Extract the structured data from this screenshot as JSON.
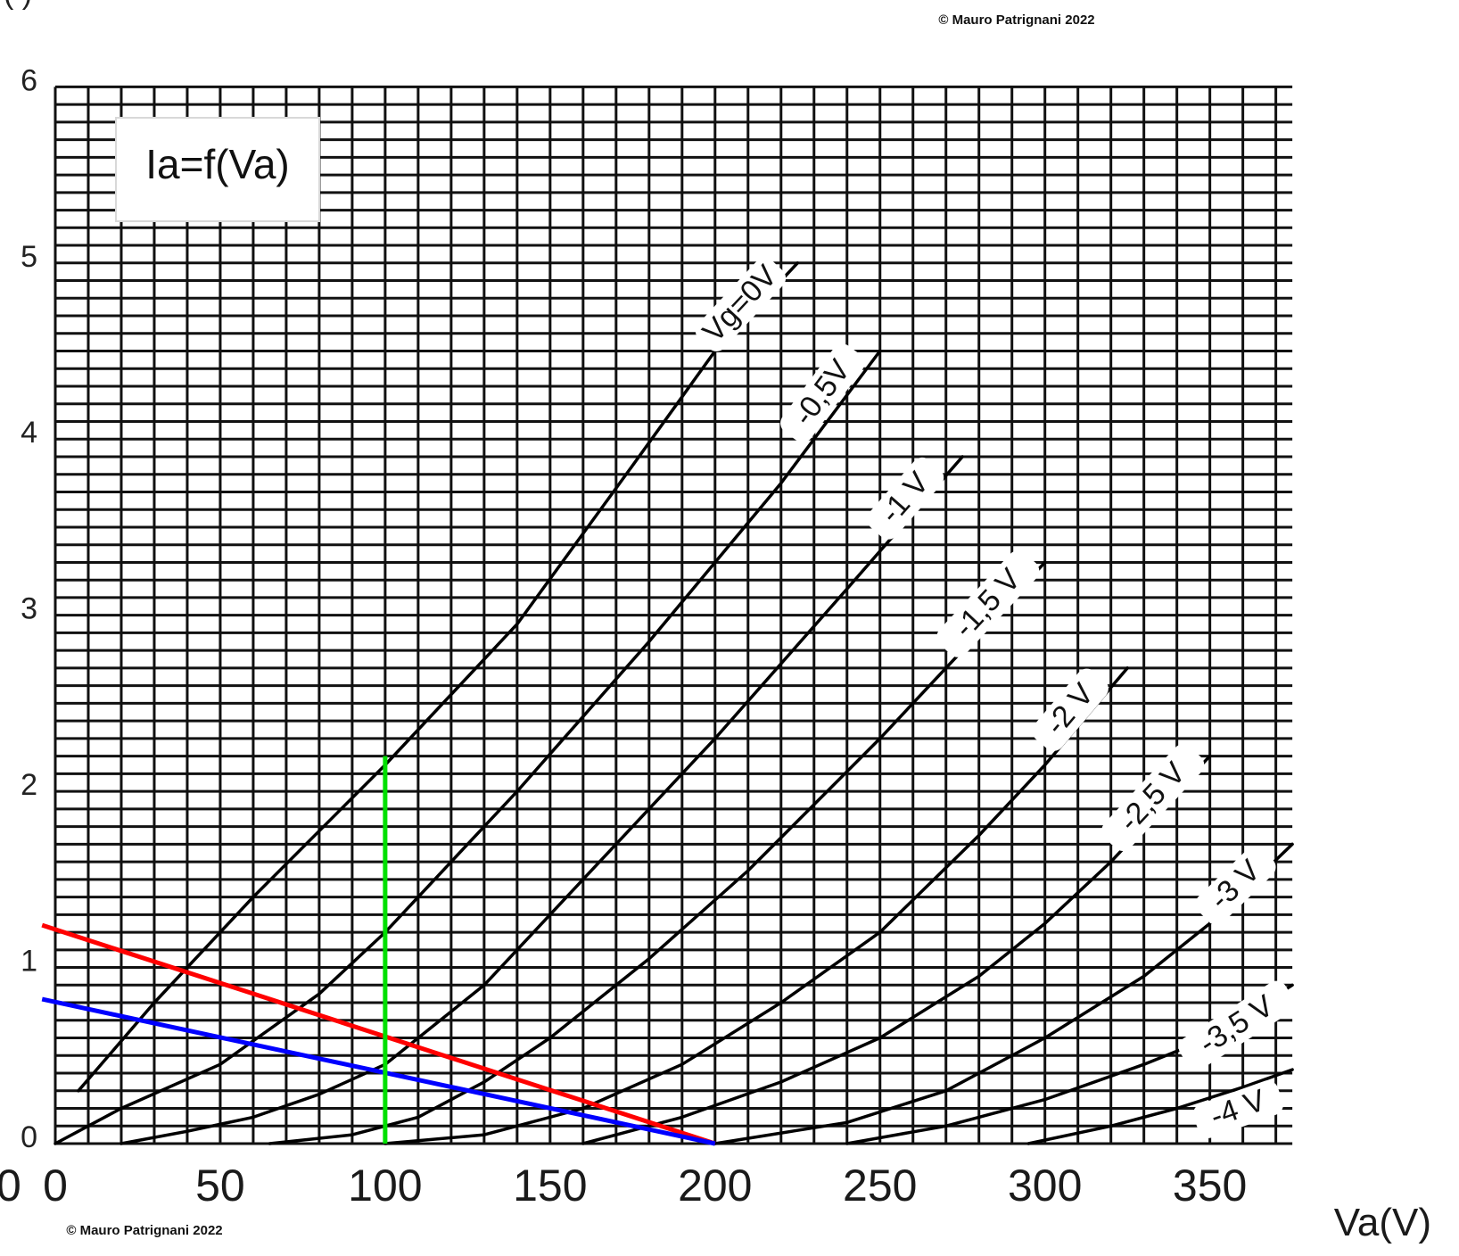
{
  "chart_data": {
    "type": "line",
    "title": "Ia=f(Va)",
    "xlabel": "Va(V)",
    "ylabel": "",
    "xlim": [
      0,
      375
    ],
    "ylim": [
      0,
      6
    ],
    "x_ticks": [
      "0",
      "50",
      "100",
      "150",
      "200",
      "250",
      "300",
      "350"
    ],
    "y_ticks": [
      "0",
      "1",
      "2",
      "3",
      "4",
      "5",
      "6"
    ],
    "grid": true,
    "series": [
      {
        "name": "Vg=0V",
        "x": [
          7,
          30,
          60,
          100,
          140,
          175,
          200,
          225
        ],
        "y": [
          0.3,
          0.8,
          1.4,
          2.15,
          2.95,
          3.85,
          4.5,
          5.0
        ]
      },
      {
        "name": "-0,5V",
        "x": [
          0,
          20,
          50,
          80,
          100,
          140,
          180,
          220,
          250
        ],
        "y": [
          0.0,
          0.2,
          0.45,
          0.85,
          1.2,
          2.0,
          2.85,
          3.75,
          4.5
        ]
      },
      {
        "name": "-1 V",
        "x": [
          20,
          40,
          60,
          80,
          100,
          130,
          160,
          200,
          240,
          275
        ],
        "y": [
          0.0,
          0.07,
          0.15,
          0.28,
          0.45,
          0.9,
          1.5,
          2.3,
          3.15,
          3.9
        ]
      },
      {
        "name": "-1,5 V",
        "x": [
          65,
          90,
          110,
          130,
          150,
          180,
          210,
          250,
          300
        ],
        "y": [
          0.0,
          0.05,
          0.15,
          0.35,
          0.6,
          1.05,
          1.55,
          2.3,
          3.3
        ]
      },
      {
        "name": "-2 V",
        "x": [
          100,
          130,
          160,
          190,
          220,
          250,
          280,
          300,
          325
        ],
        "y": [
          0.0,
          0.05,
          0.2,
          0.45,
          0.8,
          1.2,
          1.75,
          2.15,
          2.7
        ]
      },
      {
        "name": "-2,5 V",
        "x": [
          160,
          190,
          220,
          250,
          280,
          300,
          320,
          350
        ],
        "y": [
          0.0,
          0.15,
          0.35,
          0.6,
          0.95,
          1.25,
          1.6,
          2.2
        ]
      },
      {
        "name": "-3 V",
        "x": [
          200,
          240,
          270,
          300,
          330,
          350,
          375
        ],
        "y": [
          0.0,
          0.12,
          0.3,
          0.6,
          0.95,
          1.25,
          1.7
        ]
      },
      {
        "name": "-3,5 V",
        "x": [
          240,
          270,
          300,
          330,
          350,
          375
        ],
        "y": [
          0.0,
          0.1,
          0.25,
          0.45,
          0.6,
          0.9
        ]
      },
      {
        "name": "-4 V",
        "x": [
          295,
          320,
          340,
          360,
          375
        ],
        "y": [
          0.0,
          0.1,
          0.2,
          0.32,
          0.42
        ]
      }
    ],
    "overlay_lines": [
      {
        "color": "#ff0000",
        "x": [
          -4,
          200
        ],
        "y": [
          1.24,
          0.0
        ]
      },
      {
        "color": "#0000ff",
        "x": [
          -4,
          200
        ],
        "y": [
          0.82,
          0.0
        ]
      },
      {
        "color": "#00e000",
        "x": [
          100,
          100
        ],
        "y": [
          0.0,
          2.2
        ]
      }
    ]
  },
  "copyright_top": "© Mauro Patrignani 2022",
  "copyright_bottom": "© Mauro Patrignani 2022",
  "partial_y_label": "( )",
  "partial_zero_label": "0"
}
